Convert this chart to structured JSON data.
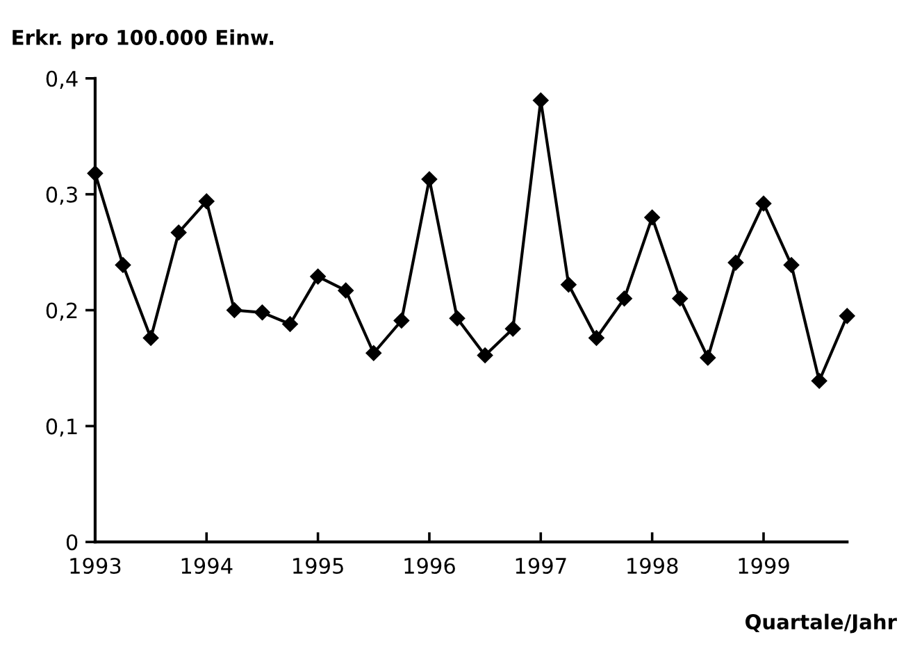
{
  "chart_data": {
    "type": "line",
    "ylabel": "Erkr. pro 100.000 Einw.",
    "xlabel": "Quartale/Jahr",
    "x": [
      1993,
      1993.25,
      1993.5,
      1993.75,
      1994,
      1994.25,
      1994.5,
      1994.75,
      1995,
      1995.25,
      1995.5,
      1995.75,
      1996,
      1996.25,
      1996.5,
      1996.75,
      1997,
      1997.25,
      1997.5,
      1997.75,
      1998,
      1998.25,
      1998.5,
      1998.75,
      1999,
      1999.25,
      1999.5,
      1999.75
    ],
    "series": [
      {
        "color": "#000000",
        "values": [
          0.318,
          0.239,
          0.176,
          0.267,
          0.294,
          0.2,
          0.198,
          0.188,
          0.229,
          0.217,
          0.163,
          0.191,
          0.313,
          0.193,
          0.161,
          0.184,
          0.381,
          0.222,
          0.176,
          0.21,
          0.28,
          0.21,
          0.159,
          0.241,
          0.292,
          0.239,
          0.139,
          0.195
        ]
      }
    ],
    "xlim": [
      1993,
      1999.75
    ],
    "xticks": [
      1993,
      1994,
      1995,
      1996,
      1997,
      1998,
      1999
    ],
    "ylim": [
      0,
      0.4
    ],
    "yticks": [
      {
        "value": 0,
        "label": "0"
      },
      {
        "value": 0.1,
        "label": "0,1"
      },
      {
        "value": 0.2,
        "label": "0,2"
      },
      {
        "value": 0.3,
        "label": "0,3"
      },
      {
        "value": 0.4,
        "label": "0,4"
      }
    ],
    "grid": false,
    "marker": "diamond",
    "line_style": "solid"
  }
}
